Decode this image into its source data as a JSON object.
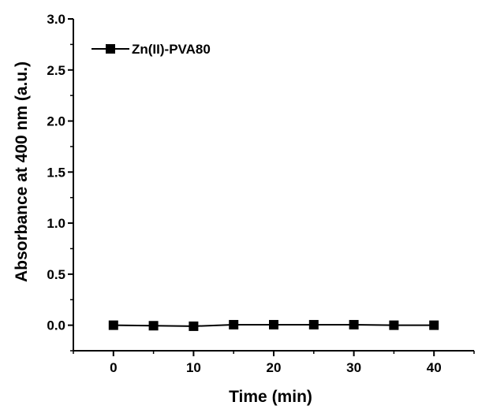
{
  "chart_data": {
    "type": "line",
    "title": "",
    "xlabel": "Time (min)",
    "ylabel": "Absorbance at 400 nm (a.u.)",
    "xlim": [
      -5,
      45
    ],
    "ylim": [
      -0.25,
      3.0
    ],
    "xticks": [
      "0",
      "10",
      "20",
      "30",
      "40"
    ],
    "yticks": [
      "0.0",
      "0.5",
      "1.0",
      "1.5",
      "2.0",
      "2.5",
      "3.0"
    ],
    "grid": false,
    "legend_position": "top-left",
    "series": [
      {
        "name": "Zn(II)-PVA80",
        "color": "#000000",
        "marker": "square",
        "x": [
          0,
          5,
          10,
          15,
          20,
          25,
          30,
          35,
          40
        ],
        "y": [
          0.0,
          -0.005,
          -0.01,
          0.005,
          0.005,
          0.005,
          0.005,
          0.0,
          0.0
        ]
      }
    ]
  }
}
